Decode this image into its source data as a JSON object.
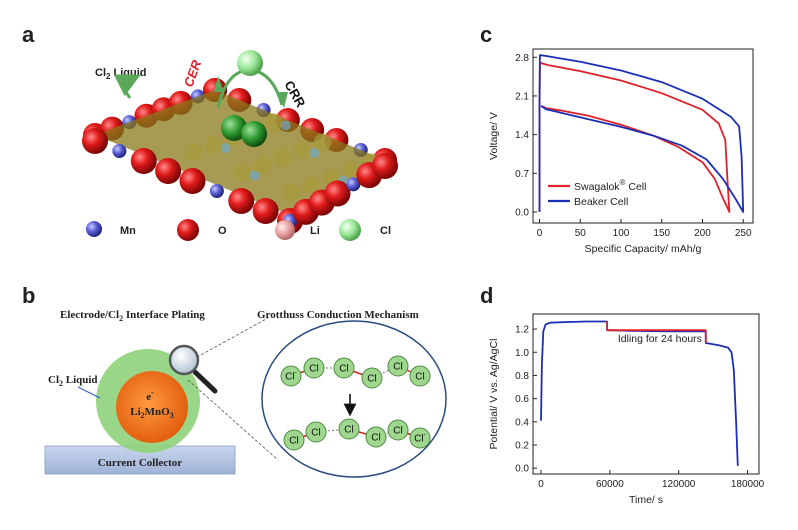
{
  "panels": {
    "a": "a",
    "b": "b",
    "c": "c",
    "d": "d"
  },
  "schematic_a": {
    "cl2_liquid": "Cl",
    "cl2_liquid_sub": "2",
    "cl2_liquid_tail": " Liquid",
    "cer": "CER",
    "crr": "CRR",
    "legend": [
      {
        "label": "Mn",
        "color": "#5a5fd6"
      },
      {
        "label": "O",
        "color": "#b01515"
      },
      {
        "label": "Li",
        "color": "#e8a0a0"
      },
      {
        "label": "Cl",
        "color": "#9be89b"
      }
    ]
  },
  "schematic_b": {
    "title_left": "Electrode/Cl",
    "title_left_sub": "2",
    "title_left_tail": " Interface Plating",
    "title_right": "Grotthuss Conduction Mechanism",
    "cl2_liquid": "Cl",
    "cl2_liquid_sub": "2",
    "cl2_liquid_tail": " Liquid",
    "electron": "e",
    "electron_sup": "-",
    "particle": "Li",
    "particle_sub1": "2",
    "particle_mid": "MnO",
    "particle_sub2": "3",
    "collector": "Current Collector",
    "cl": "Cl",
    "cl_minus": "Cl",
    "minus": "-"
  },
  "chart_data": [
    {
      "panel": "c",
      "type": "line",
      "xlabel": "Specific Capacity/ mAh/g",
      "ylabel": "Voltage/ V",
      "xlim": [
        -8,
        262
      ],
      "ylim": [
        -0.2,
        2.95
      ],
      "xticks": [
        0,
        50,
        100,
        150,
        200,
        250
      ],
      "yticks": [
        0.0,
        0.7,
        1.4,
        2.1,
        2.8
      ],
      "ytick_labels": [
        "0.0",
        "0.7",
        "1.4",
        "2.1",
        "2.8"
      ],
      "legend": {
        "position": "bottom-left"
      },
      "series": [
        {
          "name": "Swagalok",
          "name_sup": "®",
          "name_tail": " Cell",
          "color": "#e0202a",
          "points": [
            [
              0,
              0.0
            ],
            [
              0,
              1.8
            ],
            [
              0.5,
              2.7
            ],
            [
              10,
              2.66
            ],
            [
              50,
              2.55
            ],
            [
              100,
              2.38
            ],
            [
              150,
              2.15
            ],
            [
              200,
              1.85
            ],
            [
              220,
              1.6
            ],
            [
              228,
              1.3
            ],
            [
              231,
              0.5
            ],
            [
              233,
              0.0
            ],
            [
              233,
              0.0
            ],
            [
              225,
              0.25
            ],
            [
              215,
              0.6
            ],
            [
              200,
              0.9
            ],
            [
              170,
              1.18
            ],
            [
              140,
              1.38
            ],
            [
              100,
              1.58
            ],
            [
              60,
              1.74
            ],
            [
              25,
              1.84
            ],
            [
              8,
              1.88
            ],
            [
              2,
              1.92
            ]
          ]
        },
        {
          "name": "Beaker Cell",
          "name_sup": "",
          "name_tail": "",
          "color": "#1a2fb8",
          "points": [
            [
              0,
              0.0
            ],
            [
              0,
              1.9
            ],
            [
              0.5,
              2.84
            ],
            [
              10,
              2.82
            ],
            [
              50,
              2.72
            ],
            [
              100,
              2.56
            ],
            [
              150,
              2.35
            ],
            [
              200,
              2.05
            ],
            [
              235,
              1.72
            ],
            [
              245,
              1.55
            ],
            [
              248,
              1.0
            ],
            [
              250,
              0.0
            ],
            [
              250,
              0.0
            ],
            [
              240,
              0.25
            ],
            [
              225,
              0.6
            ],
            [
              205,
              0.95
            ],
            [
              175,
              1.2
            ],
            [
              140,
              1.38
            ],
            [
              100,
              1.54
            ],
            [
              60,
              1.68
            ],
            [
              25,
              1.8
            ],
            [
              8,
              1.86
            ],
            [
              2,
              1.92
            ]
          ]
        }
      ]
    },
    {
      "panel": "d",
      "type": "line",
      "xlabel": "Time/ s",
      "ylabel": "Potential/ V vs. Ag/AgCl",
      "xlim": [
        -7000,
        190000
      ],
      "ylim": [
        -0.05,
        1.33
      ],
      "xticks": [
        0,
        60000,
        120000,
        180000
      ],
      "yticks": [
        0.0,
        0.2,
        0.4,
        0.6,
        0.8,
        1.0,
        1.2
      ],
      "ytick_labels": [
        "0.0",
        "0.2",
        "0.4",
        "0.6",
        "0.8",
        "1.0",
        "1.2"
      ],
      "annotation": "Idling for 24 hours",
      "annotation_color": "#e0202a",
      "series": [
        {
          "name": "",
          "color": "#1a2fb8",
          "points": [
            [
              0,
              0.41
            ],
            [
              800,
              0.9
            ],
            [
              2000,
              1.18
            ],
            [
              4000,
              1.24
            ],
            [
              8000,
              1.255
            ],
            [
              20000,
              1.26
            ],
            [
              40000,
              1.265
            ],
            [
              57500,
              1.265
            ],
            [
              57600,
              1.19
            ],
            [
              80000,
              1.185
            ],
            [
              110000,
              1.18
            ],
            [
              143500,
              1.18
            ],
            [
              143600,
              1.08
            ],
            [
              155000,
              1.06
            ],
            [
              163000,
              1.04
            ],
            [
              166000,
              1.0
            ],
            [
              168000,
              0.85
            ],
            [
              170000,
              0.4
            ],
            [
              171500,
              0.02
            ]
          ]
        },
        {
          "name": "",
          "color": "#e0202a",
          "points": [
            [
              57500,
              1.27
            ],
            [
              57700,
              1.19
            ],
            [
              143500,
              1.19
            ],
            [
              143700,
              1.08
            ]
          ]
        }
      ]
    }
  ]
}
